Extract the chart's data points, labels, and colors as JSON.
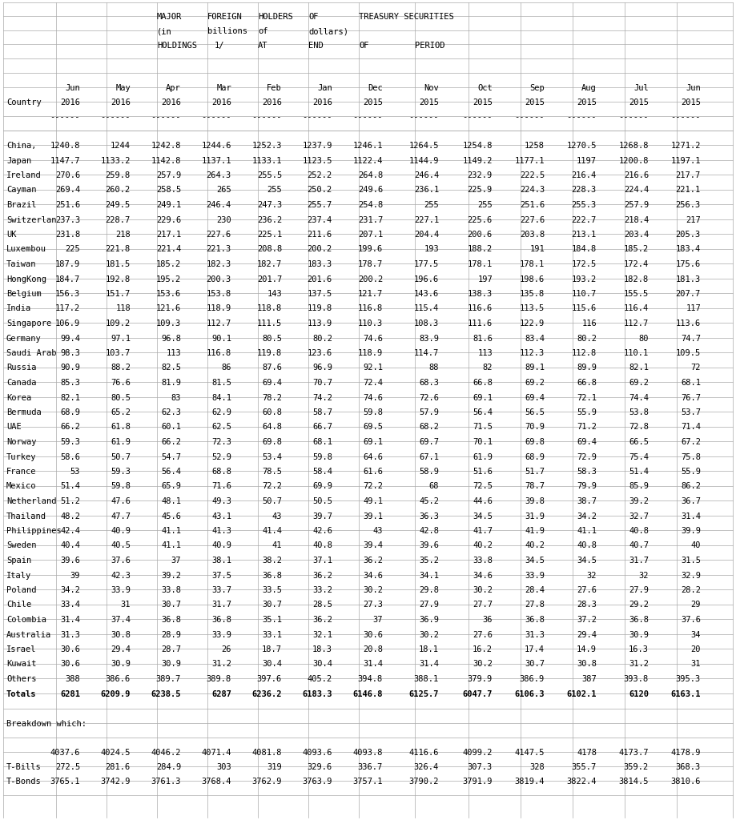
{
  "title_lines": [
    [
      "",
      "",
      "MAJOR",
      "FOREIGN",
      "HOLDERS",
      "OF",
      "TREASURY SECURITIES",
      "",
      "",
      "",
      "",
      "",
      ""
    ],
    [
      "",
      "",
      "(in",
      "billions",
      "of",
      "dollars)",
      "",
      "",
      "",
      "",
      "",
      "",
      ""
    ],
    [
      "",
      "",
      "HOLDINGS",
      "1/",
      "AT",
      "END",
      "OF",
      "PERIOD",
      "",
      "",
      "",
      "",
      ""
    ]
  ],
  "col_headers_row1": [
    "",
    "Jun",
    "May",
    "Apr",
    "Mar",
    "Feb",
    "Jan",
    "Dec",
    "Nov",
    "Oct",
    "Sep",
    "Aug",
    "Jul",
    "Jun"
  ],
  "col_headers_row2": [
    "Country",
    "2016",
    "2016",
    "2016",
    "2016",
    "2016",
    "2016",
    "2015",
    "2015",
    "2015",
    "2015",
    "2015",
    "2015",
    "2015"
  ],
  "dashes": [
    "------",
    "------",
    "------",
    "------",
    "------",
    "------",
    "------",
    "------",
    "------",
    "------",
    "------",
    "------",
    "------"
  ],
  "rows": [
    [
      "China,",
      "1240.8",
      "1244",
      "1242.8",
      "1244.6",
      "1252.3",
      "1237.9",
      "1246.1",
      "1264.5",
      "1254.8",
      "1258",
      "1270.5",
      "1268.8",
      "1271.2"
    ],
    [
      "Japan",
      "1147.7",
      "1133.2",
      "1142.8",
      "1137.1",
      "1133.1",
      "1123.5",
      "1122.4",
      "1144.9",
      "1149.2",
      "1177.1",
      "1197",
      "1200.8",
      "1197.1"
    ],
    [
      "Ireland",
      "270.6",
      "259.8",
      "257.9",
      "264.3",
      "255.5",
      "252.2",
      "264.8",
      "246.4",
      "232.9",
      "222.5",
      "216.4",
      "216.6",
      "217.7"
    ],
    [
      "Cayman",
      "269.4",
      "260.2",
      "258.5",
      "265",
      "255",
      "250.2",
      "249.6",
      "236.1",
      "225.9",
      "224.3",
      "228.3",
      "224.4",
      "221.1"
    ],
    [
      "Brazil",
      "251.6",
      "249.5",
      "249.1",
      "246.4",
      "247.3",
      "255.7",
      "254.8",
      "255",
      "255",
      "251.6",
      "255.3",
      "257.9",
      "256.3"
    ],
    [
      "Switzerlan",
      "237.3",
      "228.7",
      "229.6",
      "230",
      "236.2",
      "237.4",
      "231.7",
      "227.1",
      "225.6",
      "227.6",
      "222.7",
      "218.4",
      "217"
    ],
    [
      "UK",
      "231.8",
      "218",
      "217.1",
      "227.6",
      "225.1",
      "211.6",
      "207.1",
      "204.4",
      "200.6",
      "203.8",
      "213.1",
      "203.4",
      "205.3"
    ],
    [
      "Luxembou",
      "225",
      "221.8",
      "221.4",
      "221.3",
      "208.8",
      "200.2",
      "199.6",
      "193",
      "188.2",
      "191",
      "184.8",
      "185.2",
      "183.4"
    ],
    [
      "Taiwan",
      "187.9",
      "181.5",
      "185.2",
      "182.3",
      "182.7",
      "183.3",
      "178.7",
      "177.5",
      "178.1",
      "178.1",
      "172.5",
      "172.4",
      "175.6"
    ],
    [
      "HongKong",
      "184.7",
      "192.8",
      "195.2",
      "200.3",
      "201.7",
      "201.6",
      "200.2",
      "196.6",
      "197",
      "198.6",
      "193.2",
      "182.8",
      "181.3"
    ],
    [
      "Belgium",
      "156.3",
      "151.7",
      "153.6",
      "153.8",
      "143",
      "137.5",
      "121.7",
      "143.6",
      "138.3",
      "135.8",
      "110.7",
      "155.5",
      "207.7"
    ],
    [
      "India",
      "117.2",
      "118",
      "121.6",
      "118.9",
      "118.8",
      "119.8",
      "116.8",
      "115.4",
      "116.6",
      "113.5",
      "115.6",
      "116.4",
      "117"
    ],
    [
      "Singapore",
      "106.9",
      "109.2",
      "109.3",
      "112.7",
      "111.5",
      "113.9",
      "110.3",
      "108.3",
      "111.6",
      "122.9",
      "116",
      "112.7",
      "113.6"
    ],
    [
      "Germany",
      "99.4",
      "97.1",
      "96.8",
      "90.1",
      "80.5",
      "80.2",
      "74.6",
      "83.9",
      "81.6",
      "83.4",
      "80.2",
      "80",
      "74.7"
    ],
    [
      "Saudi Arab",
      "98.3",
      "103.7",
      "113",
      "116.8",
      "119.8",
      "123.6",
      "118.9",
      "114.7",
      "113",
      "112.3",
      "112.8",
      "110.1",
      "109.5"
    ],
    [
      "Russia",
      "90.9",
      "88.2",
      "82.5",
      "86",
      "87.6",
      "96.9",
      "92.1",
      "88",
      "82",
      "89.1",
      "89.9",
      "82.1",
      "72"
    ],
    [
      "Canada",
      "85.3",
      "76.6",
      "81.9",
      "81.5",
      "69.4",
      "70.7",
      "72.4",
      "68.3",
      "66.8",
      "69.2",
      "66.8",
      "69.2",
      "68.1"
    ],
    [
      "Korea",
      "82.1",
      "80.5",
      "83",
      "84.1",
      "78.2",
      "74.2",
      "74.6",
      "72.6",
      "69.1",
      "69.4",
      "72.1",
      "74.4",
      "76.7"
    ],
    [
      "Bermuda",
      "68.9",
      "65.2",
      "62.3",
      "62.9",
      "60.8",
      "58.7",
      "59.8",
      "57.9",
      "56.4",
      "56.5",
      "55.9",
      "53.8",
      "53.7"
    ],
    [
      "UAE",
      "66.2",
      "61.8",
      "60.1",
      "62.5",
      "64.8",
      "66.7",
      "69.5",
      "68.2",
      "71.5",
      "70.9",
      "71.2",
      "72.8",
      "71.4"
    ],
    [
      "Norway",
      "59.3",
      "61.9",
      "66.2",
      "72.3",
      "69.8",
      "68.1",
      "69.1",
      "69.7",
      "70.1",
      "69.8",
      "69.4",
      "66.5",
      "67.2"
    ],
    [
      "Turkey",
      "58.6",
      "50.7",
      "54.7",
      "52.9",
      "53.4",
      "59.8",
      "64.6",
      "67.1",
      "61.9",
      "68.9",
      "72.9",
      "75.4",
      "75.8"
    ],
    [
      "France",
      "53",
      "59.3",
      "56.4",
      "68.8",
      "78.5",
      "58.4",
      "61.6",
      "58.9",
      "51.6",
      "51.7",
      "58.3",
      "51.4",
      "55.9"
    ],
    [
      "Mexico",
      "51.4",
      "59.8",
      "65.9",
      "71.6",
      "72.2",
      "69.9",
      "72.2",
      "68",
      "72.5",
      "78.7",
      "79.9",
      "85.9",
      "86.2"
    ],
    [
      "Netherland",
      "51.2",
      "47.6",
      "48.1",
      "49.3",
      "50.7",
      "50.5",
      "49.1",
      "45.2",
      "44.6",
      "39.8",
      "38.7",
      "39.2",
      "36.7"
    ],
    [
      "Thailand",
      "48.2",
      "47.7",
      "45.6",
      "43.1",
      "43",
      "39.7",
      "39.1",
      "36.3",
      "34.5",
      "31.9",
      "34.2",
      "32.7",
      "31.4"
    ],
    [
      "Philippines",
      "42.4",
      "40.9",
      "41.1",
      "41.3",
      "41.4",
      "42.6",
      "43",
      "42.8",
      "41.7",
      "41.9",
      "41.1",
      "40.8",
      "39.9"
    ],
    [
      "Sweden",
      "40.4",
      "40.5",
      "41.1",
      "40.9",
      "41",
      "40.8",
      "39.4",
      "39.6",
      "40.2",
      "40.2",
      "40.8",
      "40.7",
      "40"
    ],
    [
      "Spain",
      "39.6",
      "37.6",
      "37",
      "38.1",
      "38.2",
      "37.1",
      "36.2",
      "35.2",
      "33.8",
      "34.5",
      "34.5",
      "31.7",
      "31.5"
    ],
    [
      "Italy",
      "39",
      "42.3",
      "39.2",
      "37.5",
      "36.8",
      "36.2",
      "34.6",
      "34.1",
      "34.6",
      "33.9",
      "32",
      "32",
      "32.9"
    ],
    [
      "Poland",
      "34.2",
      "33.9",
      "33.8",
      "33.7",
      "33.5",
      "33.2",
      "30.2",
      "29.8",
      "30.2",
      "28.4",
      "27.6",
      "27.9",
      "28.2"
    ],
    [
      "Chile",
      "33.4",
      "31",
      "30.7",
      "31.7",
      "30.7",
      "28.5",
      "27.3",
      "27.9",
      "27.7",
      "27.8",
      "28.3",
      "29.2",
      "29"
    ],
    [
      "Colombia",
      "31.4",
      "37.4",
      "36.8",
      "36.8",
      "35.1",
      "36.2",
      "37",
      "36.9",
      "36",
      "36.8",
      "37.2",
      "36.8",
      "37.6"
    ],
    [
      "Australia",
      "31.3",
      "30.8",
      "28.9",
      "33.9",
      "33.1",
      "32.1",
      "30.6",
      "30.2",
      "27.6",
      "31.3",
      "29.4",
      "30.9",
      "34"
    ],
    [
      "Israel",
      "30.6",
      "29.4",
      "28.7",
      "26",
      "18.7",
      "18.3",
      "20.8",
      "18.1",
      "16.2",
      "17.4",
      "14.9",
      "16.3",
      "20"
    ],
    [
      "Kuwait",
      "30.6",
      "30.9",
      "30.9",
      "31.2",
      "30.4",
      "30.4",
      "31.4",
      "31.4",
      "30.2",
      "30.7",
      "30.8",
      "31.2",
      "31"
    ],
    [
      "Others",
      "388",
      "386.6",
      "389.7",
      "389.8",
      "397.6",
      "405.2",
      "394.8",
      "388.1",
      "379.9",
      "386.9",
      "387",
      "393.8",
      "395.3"
    ],
    [
      "Totals",
      "6281",
      "6209.9",
      "6238.5",
      "6287",
      "6236.2",
      "6183.3",
      "6146.8",
      "6125.7",
      "6047.7",
      "6106.3",
      "6102.1",
      "6120",
      "6163.1"
    ]
  ],
  "breakdown_label": "Breakdown which:",
  "breakdown_rows": [
    [
      "",
      "4037.6",
      "4024.5",
      "4046.2",
      "4071.4",
      "4081.8",
      "4093.6",
      "4093.8",
      "4116.6",
      "4099.2",
      "4147.5",
      "4178",
      "4173.7",
      "4178.9"
    ],
    [
      "T-Bills",
      "272.5",
      "281.6",
      "284.9",
      "303",
      "319",
      "329.6",
      "336.7",
      "326.4",
      "307.3",
      "328",
      "355.7",
      "359.2",
      "368.3"
    ],
    [
      "T-Bonds",
      "3765.1",
      "3742.9",
      "3761.3",
      "3768.4",
      "3762.9",
      "3763.9",
      "3757.1",
      "3790.2",
      "3791.9",
      "3819.4",
      "3822.4",
      "3814.5",
      "3810.6"
    ]
  ],
  "bg_color": "#ffffff",
  "text_color": "#000000",
  "grid_color": "#cccccc",
  "font_size": 7.5,
  "header_font_size": 7.5
}
